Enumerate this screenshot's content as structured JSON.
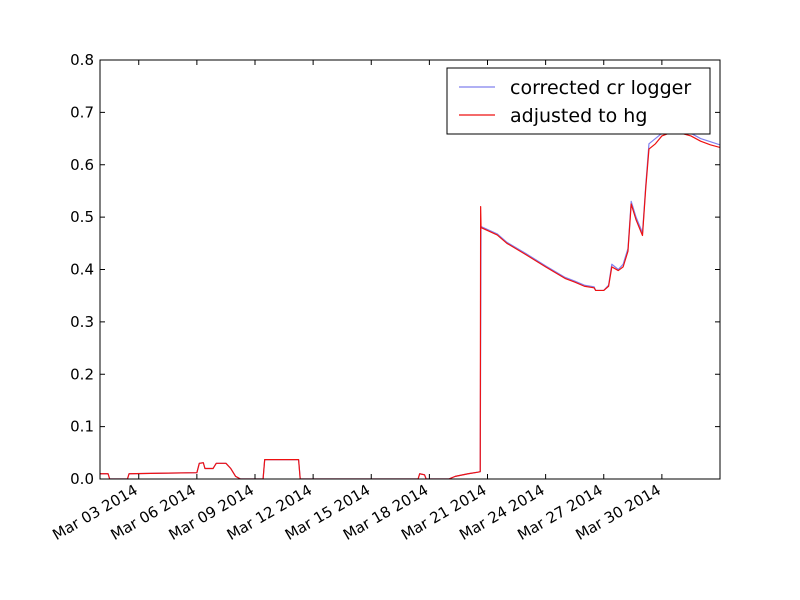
{
  "chart_data": {
    "type": "line",
    "title": "",
    "xlabel": "",
    "ylabel": "",
    "x_range": [
      "2014-03-01",
      "2014-04-02"
    ],
    "ylim": [
      0,
      0.8
    ],
    "y_ticks": [
      0.0,
      0.1,
      0.2,
      0.3,
      0.4,
      0.5,
      0.6,
      0.7,
      0.8
    ],
    "y_tick_labels": [
      "0.0",
      "0.1",
      "0.2",
      "0.3",
      "0.4",
      "0.5",
      "0.6",
      "0.7",
      "0.8"
    ],
    "x_ticks": [
      {
        "date": "2014-03-03",
        "label": "Mar 03 2014"
      },
      {
        "date": "2014-03-06",
        "label": "Mar 06 2014"
      },
      {
        "date": "2014-03-09",
        "label": "Mar 09 2014"
      },
      {
        "date": "2014-03-12",
        "label": "Mar 12 2014"
      },
      {
        "date": "2014-03-15",
        "label": "Mar 15 2014"
      },
      {
        "date": "2014-03-18",
        "label": "Mar 18 2014"
      },
      {
        "date": "2014-03-21",
        "label": "Mar 21 2014"
      },
      {
        "date": "2014-03-24",
        "label": "Mar 24 2014"
      },
      {
        "date": "2014-03-27",
        "label": "Mar 27 2014"
      },
      {
        "date": "2014-03-30",
        "label": "Mar 30 2014"
      }
    ],
    "grid": false,
    "legend_position": "top-right",
    "series": [
      {
        "name": "corrected cr logger",
        "color": "#8080ee",
        "points": [
          [
            "2014-03-01 00:00",
            0.01
          ],
          [
            "2014-03-01 10:00",
            0.01
          ],
          [
            "2014-03-01 12:00",
            0.0
          ],
          [
            "2014-03-02 10:00",
            0.0
          ],
          [
            "2014-03-02 12:00",
            0.01
          ],
          [
            "2014-03-04 00:00",
            0.011
          ],
          [
            "2014-03-06 00:00",
            0.012
          ],
          [
            "2014-03-06 03:00",
            0.03
          ],
          [
            "2014-03-06 08:00",
            0.031
          ],
          [
            "2014-03-06 10:00",
            0.02
          ],
          [
            "2014-03-06 20:00",
            0.02
          ],
          [
            "2014-03-07 00:00",
            0.03
          ],
          [
            "2014-03-07 12:00",
            0.03
          ],
          [
            "2014-03-07 18:00",
            0.02
          ],
          [
            "2014-03-08 00:00",
            0.005
          ],
          [
            "2014-03-08 06:00",
            0.0
          ],
          [
            "2014-03-09 10:00",
            0.0
          ],
          [
            "2014-03-09 12:00",
            0.037
          ],
          [
            "2014-03-10 12:00",
            0.037
          ],
          [
            "2014-03-11 06:00",
            0.037
          ],
          [
            "2014-03-11 08:00",
            0.0
          ],
          [
            "2014-03-17 10:00",
            0.0
          ],
          [
            "2014-03-17 12:00",
            0.01
          ],
          [
            "2014-03-17 18:00",
            0.008
          ],
          [
            "2014-03-17 20:00",
            0.0
          ],
          [
            "2014-03-19 00:00",
            0.0
          ],
          [
            "2014-03-19 08:00",
            0.005
          ],
          [
            "2014-03-20 00:00",
            0.01
          ],
          [
            "2014-03-20 12:00",
            0.013
          ],
          [
            "2014-03-20 15:00",
            0.014
          ],
          [
            "2014-03-20 16:00",
            0.482
          ],
          [
            "2014-03-21 12:00",
            0.468
          ],
          [
            "2014-03-22 00:00",
            0.452
          ],
          [
            "2014-03-23 00:00",
            0.43
          ],
          [
            "2014-03-24 00:00",
            0.407
          ],
          [
            "2014-03-25 00:00",
            0.385
          ],
          [
            "2014-03-25 12:00",
            0.378
          ],
          [
            "2014-03-26 00:00",
            0.37
          ],
          [
            "2014-03-26 12:00",
            0.367
          ],
          [
            "2014-03-26 14:00",
            0.36
          ],
          [
            "2014-03-27 00:00",
            0.36
          ],
          [
            "2014-03-27 06:00",
            0.37
          ],
          [
            "2014-03-27 10:00",
            0.41
          ],
          [
            "2014-03-27 18:00",
            0.4
          ],
          [
            "2014-03-28 00:00",
            0.41
          ],
          [
            "2014-03-28 06:00",
            0.44
          ],
          [
            "2014-03-28 10:00",
            0.53
          ],
          [
            "2014-03-28 16:00",
            0.5
          ],
          [
            "2014-03-29 00:00",
            0.47
          ],
          [
            "2014-03-29 04:00",
            0.56
          ],
          [
            "2014-03-29 08:00",
            0.64
          ],
          [
            "2014-03-29 16:00",
            0.65
          ],
          [
            "2014-03-30 00:00",
            0.66
          ],
          [
            "2014-03-30 12:00",
            0.666
          ],
          [
            "2014-03-31 00:00",
            0.665
          ],
          [
            "2014-03-31 12:00",
            0.66
          ],
          [
            "2014-04-01 00:00",
            0.65
          ],
          [
            "2014-04-01 12:00",
            0.644
          ],
          [
            "2014-04-02 00:00",
            0.638
          ],
          [
            "2014-04-02 06:00",
            0.63
          ]
        ]
      },
      {
        "name": "adjusted to hg",
        "color": "#ee1111",
        "points": [
          [
            "2014-03-01 00:00",
            0.01
          ],
          [
            "2014-03-01 10:00",
            0.01
          ],
          [
            "2014-03-01 12:00",
            0.0
          ],
          [
            "2014-03-02 10:00",
            0.0
          ],
          [
            "2014-03-02 12:00",
            0.01
          ],
          [
            "2014-03-04 00:00",
            0.011
          ],
          [
            "2014-03-06 00:00",
            0.012
          ],
          [
            "2014-03-06 03:00",
            0.03
          ],
          [
            "2014-03-06 08:00",
            0.031
          ],
          [
            "2014-03-06 10:00",
            0.02
          ],
          [
            "2014-03-06 20:00",
            0.02
          ],
          [
            "2014-03-07 00:00",
            0.03
          ],
          [
            "2014-03-07 12:00",
            0.03
          ],
          [
            "2014-03-07 18:00",
            0.02
          ],
          [
            "2014-03-08 00:00",
            0.005
          ],
          [
            "2014-03-08 06:00",
            0.0
          ],
          [
            "2014-03-09 10:00",
            0.0
          ],
          [
            "2014-03-09 12:00",
            0.037
          ],
          [
            "2014-03-10 12:00",
            0.037
          ],
          [
            "2014-03-11 06:00",
            0.037
          ],
          [
            "2014-03-11 08:00",
            0.0
          ],
          [
            "2014-03-17 10:00",
            0.0
          ],
          [
            "2014-03-17 12:00",
            0.01
          ],
          [
            "2014-03-17 18:00",
            0.008
          ],
          [
            "2014-03-17 20:00",
            0.0
          ],
          [
            "2014-03-19 00:00",
            0.0
          ],
          [
            "2014-03-19 08:00",
            0.005
          ],
          [
            "2014-03-20 00:00",
            0.01
          ],
          [
            "2014-03-20 12:00",
            0.013
          ],
          [
            "2014-03-20 15:00",
            0.014
          ],
          [
            "2014-03-20 15:30",
            0.52
          ],
          [
            "2014-03-20 16:00",
            0.48
          ],
          [
            "2014-03-21 12:00",
            0.466
          ],
          [
            "2014-03-22 00:00",
            0.45
          ],
          [
            "2014-03-23 00:00",
            0.428
          ],
          [
            "2014-03-24 00:00",
            0.405
          ],
          [
            "2014-03-25 00:00",
            0.383
          ],
          [
            "2014-03-25 12:00",
            0.376
          ],
          [
            "2014-03-26 00:00",
            0.368
          ],
          [
            "2014-03-26 12:00",
            0.365
          ],
          [
            "2014-03-26 14:00",
            0.36
          ],
          [
            "2014-03-27 00:00",
            0.36
          ],
          [
            "2014-03-27 06:00",
            0.368
          ],
          [
            "2014-03-27 10:00",
            0.405
          ],
          [
            "2014-03-27 18:00",
            0.398
          ],
          [
            "2014-03-28 00:00",
            0.405
          ],
          [
            "2014-03-28 06:00",
            0.435
          ],
          [
            "2014-03-28 10:00",
            0.525
          ],
          [
            "2014-03-28 16:00",
            0.495
          ],
          [
            "2014-03-29 00:00",
            0.465
          ],
          [
            "2014-03-29 04:00",
            0.555
          ],
          [
            "2014-03-29 08:00",
            0.63
          ],
          [
            "2014-03-29 16:00",
            0.64
          ],
          [
            "2014-03-30 00:00",
            0.655
          ],
          [
            "2014-03-30 12:00",
            0.662
          ],
          [
            "2014-03-31 00:00",
            0.66
          ],
          [
            "2014-03-31 12:00",
            0.655
          ],
          [
            "2014-04-01 00:00",
            0.645
          ],
          [
            "2014-04-01 12:00",
            0.638
          ],
          [
            "2014-04-02 00:00",
            0.633
          ],
          [
            "2014-04-02 06:00",
            0.626
          ]
        ]
      }
    ]
  }
}
